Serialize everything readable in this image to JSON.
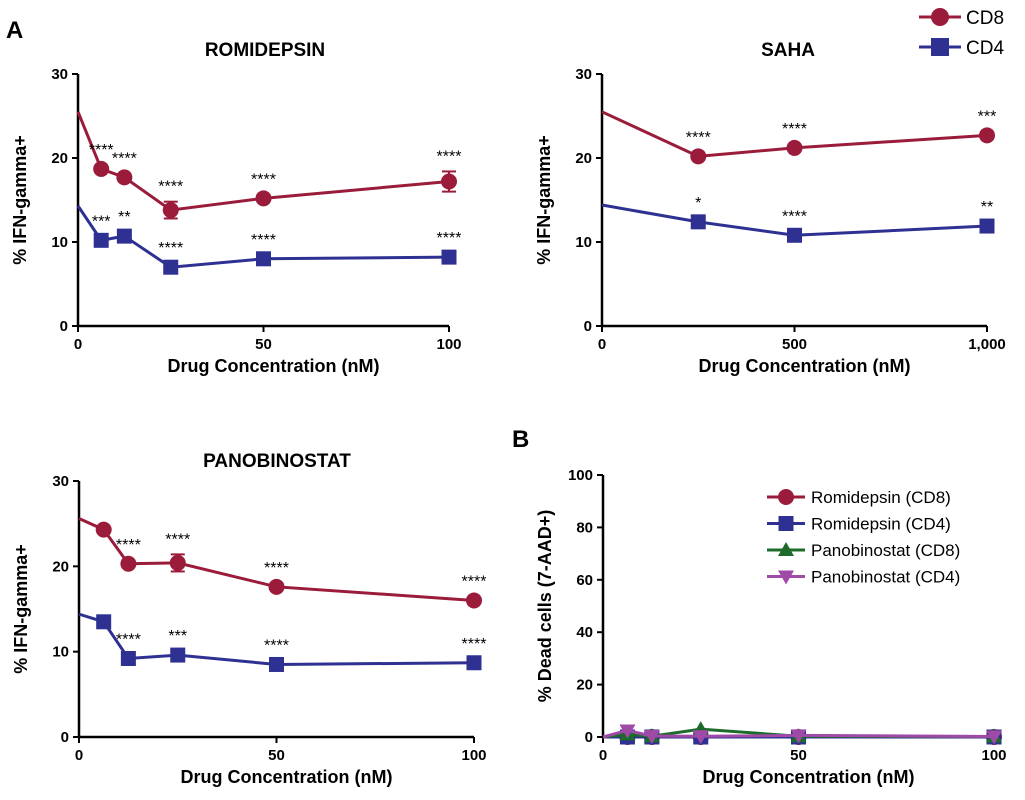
{
  "panel_labels": [
    "A",
    "B"
  ],
  "top_legend": [
    {
      "name": "CD8",
      "color": "#9b1b3b",
      "marker": "circle"
    },
    {
      "name": "CD4",
      "color": "#2e3192",
      "marker": "square"
    }
  ],
  "chart_data": [
    {
      "type": "line",
      "title": "ROMIDEPSIN",
      "xlabel": "Drug Concentration (nM)",
      "ylabel": "% IFN-gamma+",
      "xlim": [
        0,
        100
      ],
      "ylim": [
        0,
        30
      ],
      "xticks": [
        {
          "v": 0,
          "label": "0"
        },
        {
          "v": 50,
          "label": "50"
        },
        {
          "v": 100,
          "label": "100"
        }
      ],
      "yticks": [
        {
          "v": 0,
          "label": "0"
        },
        {
          "v": 10,
          "label": "10"
        },
        {
          "v": 20,
          "label": "20"
        },
        {
          "v": 30,
          "label": "30"
        }
      ],
      "series": [
        {
          "name": "CD8",
          "color": "#9b1b3b",
          "marker": "circle",
          "x": [
            0,
            6.25,
            12.5,
            25,
            50,
            100
          ],
          "y": [
            25.5,
            18.7,
            17.7,
            13.8,
            15.2,
            17.2
          ],
          "err": [
            0,
            0,
            0,
            1.0,
            0,
            1.2
          ],
          "stars": [
            "",
            "****",
            "****",
            "****",
            "****",
            "****"
          ]
        },
        {
          "name": "CD4",
          "color": "#2e3192",
          "marker": "square",
          "x": [
            0,
            6.25,
            12.5,
            25,
            50,
            100
          ],
          "y": [
            14.3,
            10.2,
            10.7,
            7.0,
            8.0,
            8.2
          ],
          "err": [
            0,
            0,
            0,
            0,
            0,
            0
          ],
          "stars": [
            "",
            "***",
            "**",
            "****",
            "****",
            "****"
          ]
        }
      ]
    },
    {
      "type": "line",
      "title": "SAHA",
      "xlabel": "Drug Concentration (nM)",
      "ylabel": "% IFN-gamma+",
      "xlim": [
        0,
        1000
      ],
      "ylim": [
        0,
        30
      ],
      "xticks": [
        {
          "v": 0,
          "label": "0"
        },
        {
          "v": 500,
          "label": "500"
        },
        {
          "v": 1000,
          "label": "1,000"
        }
      ],
      "yticks": [
        {
          "v": 0,
          "label": "0"
        },
        {
          "v": 10,
          "label": "10"
        },
        {
          "v": 20,
          "label": "20"
        },
        {
          "v": 30,
          "label": "30"
        }
      ],
      "series": [
        {
          "name": "CD8",
          "color": "#9b1b3b",
          "marker": "circle",
          "x": [
            0,
            250,
            500,
            1000
          ],
          "y": [
            25.5,
            20.2,
            21.2,
            22.7
          ],
          "err": [
            0,
            0,
            0,
            0
          ],
          "stars": [
            "",
            "****",
            "****",
            "***"
          ]
        },
        {
          "name": "CD4",
          "color": "#2e3192",
          "marker": "square",
          "x": [
            0,
            250,
            500,
            1000
          ],
          "y": [
            14.4,
            12.4,
            10.8,
            11.9
          ],
          "err": [
            0,
            0,
            0,
            0
          ],
          "stars": [
            "",
            "*",
            "****",
            "**"
          ]
        }
      ]
    },
    {
      "type": "line",
      "title": "PANOBINOSTAT",
      "xlabel": "Drug Concentration (nM)",
      "ylabel": "% IFN-gamma+",
      "xlim": [
        0,
        100
      ],
      "ylim": [
        0,
        30
      ],
      "xticks": [
        {
          "v": 0,
          "label": "0"
        },
        {
          "v": 50,
          "label": "50"
        },
        {
          "v": 100,
          "label": "100"
        }
      ],
      "yticks": [
        {
          "v": 0,
          "label": "0"
        },
        {
          "v": 10,
          "label": "10"
        },
        {
          "v": 20,
          "label": "20"
        },
        {
          "v": 30,
          "label": "30"
        }
      ],
      "series": [
        {
          "name": "CD8",
          "color": "#9b1b3b",
          "marker": "circle",
          "x": [
            0,
            6.25,
            12.5,
            25,
            50,
            100
          ],
          "y": [
            25.6,
            24.3,
            20.3,
            20.4,
            17.6,
            16.0
          ],
          "err": [
            0,
            0,
            0,
            1.0,
            0,
            0
          ],
          "stars": [
            "",
            "",
            "****",
            "****",
            "****",
            "****"
          ]
        },
        {
          "name": "CD4",
          "color": "#2e3192",
          "marker": "square",
          "x": [
            0,
            6.25,
            12.5,
            25,
            50,
            100
          ],
          "y": [
            14.4,
            13.5,
            9.2,
            9.6,
            8.5,
            8.7
          ],
          "err": [
            0,
            0,
            0,
            0,
            0,
            0
          ],
          "stars": [
            "",
            "",
            "****",
            "***",
            "****",
            "****"
          ]
        }
      ]
    },
    {
      "type": "line",
      "title": "",
      "xlabel": "Drug Concentration (nM)",
      "ylabel": "% Dead cells (7-AAD+)",
      "xlim": [
        0,
        100
      ],
      "ylim": [
        0,
        100
      ],
      "xticks": [
        {
          "v": 0,
          "label": "0"
        },
        {
          "v": 50,
          "label": "50"
        },
        {
          "v": 100,
          "label": "100"
        }
      ],
      "yticks": [
        {
          "v": 0,
          "label": "0"
        },
        {
          "v": 20,
          "label": "20"
        },
        {
          "v": 40,
          "label": "40"
        },
        {
          "v": 60,
          "label": "60"
        },
        {
          "v": 80,
          "label": "80"
        },
        {
          "v": 100,
          "label": "100"
        }
      ],
      "legend": "top-right",
      "series": [
        {
          "name": "Romidepsin (CD8)",
          "color": "#9b1b3b",
          "marker": "circle",
          "x": [
            0,
            6.25,
            12.5,
            25,
            50,
            100
          ],
          "y": [
            0,
            0,
            0,
            0,
            0,
            0
          ],
          "err": [
            0,
            0,
            0,
            0,
            0,
            0
          ],
          "stars": [
            "",
            "",
            "",
            "",
            "",
            ""
          ]
        },
        {
          "name": "Romidepsin (CD4)",
          "color": "#2e3192",
          "marker": "square",
          "x": [
            0,
            6.25,
            12.5,
            25,
            50,
            100
          ],
          "y": [
            0,
            0,
            0,
            0,
            0,
            0
          ],
          "err": [
            0,
            0,
            0,
            0,
            0,
            0
          ],
          "stars": [
            "",
            "",
            "",
            "",
            "",
            ""
          ]
        },
        {
          "name": "Panobinostat (CD8)",
          "color": "#1d6b2a",
          "marker": "triangle-up",
          "x": [
            0,
            6.25,
            12.5,
            25,
            50,
            100
          ],
          "y": [
            0,
            1.0,
            0.3,
            3.0,
            0.3,
            0.2
          ],
          "err": [
            0,
            0,
            0,
            0,
            0,
            0
          ],
          "stars": [
            "",
            "",
            "",
            "",
            "",
            ""
          ]
        },
        {
          "name": "Panobinostat (CD4)",
          "color": "#a04aa8",
          "marker": "triangle-down",
          "x": [
            0,
            6.25,
            12.5,
            25,
            50,
            100
          ],
          "y": [
            0,
            2.5,
            0.4,
            0.3,
            0.6,
            0.2
          ],
          "err": [
            0,
            0,
            0,
            0,
            0,
            0
          ],
          "stars": [
            "",
            "",
            "",
            "",
            "",
            ""
          ]
        }
      ]
    }
  ]
}
